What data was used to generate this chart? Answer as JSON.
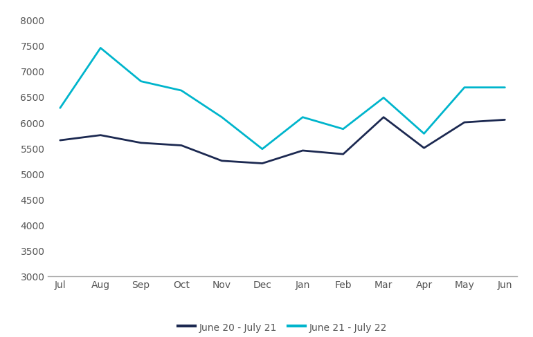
{
  "months": [
    "Jul",
    "Aug",
    "Sep",
    "Oct",
    "Nov",
    "Dec",
    "Jan",
    "Feb",
    "Mar",
    "Apr",
    "May",
    "Jun"
  ],
  "series1_label": "June 20 - July 21",
  "series1_color": "#1c2951",
  "series1_values": [
    5650,
    5750,
    5600,
    5550,
    5250,
    5200,
    5450,
    5380,
    6100,
    5500,
    6000,
    6050
  ],
  "series2_label": "June 21 - July 22",
  "series2_color": "#00b5cc",
  "series2_values": [
    6280,
    7450,
    6800,
    6620,
    6100,
    5480,
    6100,
    5870,
    6480,
    5780,
    6680,
    6680
  ],
  "ylim_min": 3000,
  "ylim_max": 8200,
  "yticks": [
    3000,
    3500,
    4000,
    4500,
    5000,
    5500,
    6000,
    6500,
    7000,
    7500,
    8000
  ],
  "line_width": 2.0,
  "background_color": "#ffffff",
  "axis_label_color": "#555555",
  "tick_label_fontsize": 10,
  "legend_fontsize": 10,
  "legend_ncol": 2,
  "fig_width": 7.7,
  "fig_height": 4.89,
  "dpi": 100
}
